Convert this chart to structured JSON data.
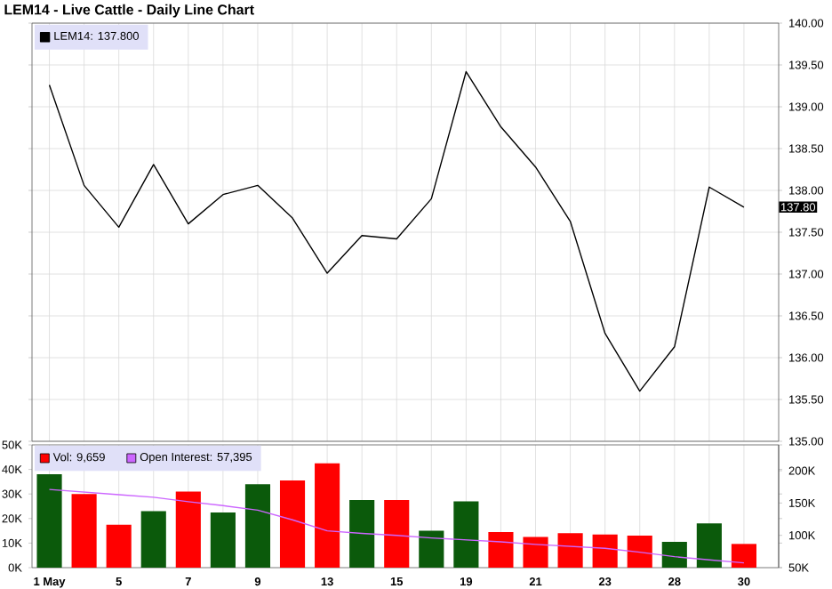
{
  "chart_data": [
    {
      "type": "line",
      "title": "LEM14 - Live Cattle - Daily Line Chart",
      "categories": [
        null,
        null,
        null,
        null,
        null,
        null,
        null,
        null,
        null,
        null,
        null,
        null,
        null,
        null,
        null,
        null,
        null,
        null,
        null,
        null,
        null
      ],
      "series": [
        {
          "name": "LEM14: 137.800",
          "color": "#000000",
          "values": [
            139.26,
            138.06,
            137.56,
            138.31,
            137.6,
            137.95,
            138.06,
            137.67,
            137.01,
            137.46,
            137.42,
            137.9,
            139.42,
            138.76,
            138.28,
            137.63,
            136.29,
            135.6,
            136.13,
            138.04,
            137.8
          ]
        }
      ],
      "ylim": [
        135,
        140
      ],
      "yticks": [
        {
          "value": 135,
          "label": "135.00"
        },
        {
          "value": 135.5,
          "label": "135.50"
        },
        {
          "value": 136,
          "label": "136.00"
        },
        {
          "value": 136.5,
          "label": "136.50"
        },
        {
          "value": 137,
          "label": "137.00"
        },
        {
          "value": 137.5,
          "label": "137.50"
        },
        {
          "value": 138,
          "label": "138.00"
        },
        {
          "value": 138.5,
          "label": "138.50"
        },
        {
          "value": 139,
          "label": "139.00"
        },
        {
          "value": 139.5,
          "label": "139.50"
        },
        {
          "value": 140,
          "label": "140.00"
        }
      ],
      "grid": true,
      "legend": "top left",
      "tick_labels": "y",
      "annotations": [
        "137.80"
      ]
    },
    {
      "type": "bar",
      "categories": [
        "1 May",
        null,
        "5",
        null,
        "7",
        null,
        "9",
        null,
        "13",
        null,
        "15",
        null,
        "19",
        null,
        "21",
        null,
        "23",
        null,
        "28",
        null,
        "30"
      ],
      "series": [
        {
          "name": "Vol: 9,659",
          "color": "#ff0000",
          "colors": [
            "#0b5a0b",
            "#ff0000",
            "#ff0000",
            "#0b5a0b",
            "#ff0000",
            "#0b5a0b",
            "#0b5a0b",
            "#ff0000",
            "#ff0000",
            "#0b5a0b",
            "#ff0000",
            "#0b5a0b",
            "#0b5a0b",
            "#ff0000",
            "#ff0000",
            "#ff0000",
            "#ff0000",
            "#ff0000",
            "#0b5a0b",
            "#0b5a0b",
            "#ff0000"
          ],
          "values": [
            38000,
            30000,
            17500,
            23000,
            31000,
            22500,
            34000,
            35500,
            42500,
            27500,
            27500,
            15000,
            27000,
            14500,
            12500,
            14000,
            13500,
            13000,
            10500,
            18000,
            9659
          ]
        },
        {
          "name": "Open Interest: 57,395",
          "type": "line",
          "axis": "y2",
          "color": "#cc66ff",
          "values": [
            171000,
            167000,
            163000,
            159000,
            152000,
            146000,
            139000,
            124000,
            107000,
            103000,
            100000,
            96000,
            93000,
            90000,
            86000,
            83000,
            80000,
            74000,
            67000,
            62000,
            57395
          ]
        }
      ],
      "ylim": [
        0,
        50000
      ],
      "yticks": [
        {
          "value": 0,
          "label": "0K"
        },
        {
          "value": 10000,
          "label": "10K"
        },
        {
          "value": 20000,
          "label": "20K"
        },
        {
          "value": 30000,
          "label": "30K"
        },
        {
          "value": 40000,
          "label": "40K"
        },
        {
          "value": 50000,
          "label": "50K"
        }
      ],
      "y2lim": [
        50000,
        240000
      ],
      "y2ticks": [
        {
          "value": 50000,
          "label": "50K"
        },
        {
          "value": 100000,
          "label": "100K"
        },
        {
          "value": 150000,
          "label": "150K"
        },
        {
          "value": 200000,
          "label": "200K"
        }
      ],
      "grid": "x",
      "legend": "top left"
    }
  ]
}
